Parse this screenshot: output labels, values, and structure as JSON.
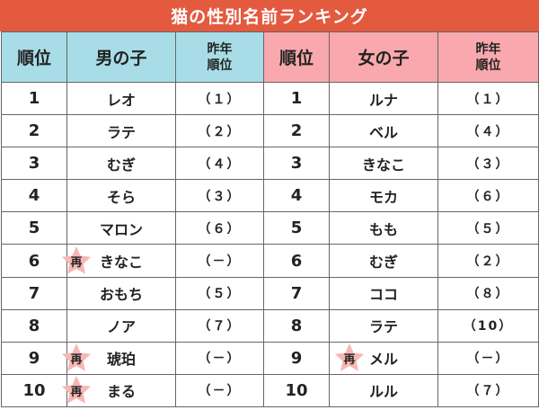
{
  "title": "猫の性別名前ランキング",
  "headers": {
    "rank": "順位",
    "male": "男の子",
    "female": "女の子",
    "prev_line1": "昨年",
    "prev_line2": "順位"
  },
  "badge_text": "再",
  "colors": {
    "title_bg": "#e35a3f",
    "male_header_bg": "#a8dde7",
    "female_header_bg": "#f9a8ad",
    "star": "#f7b7b3"
  },
  "rows": [
    {
      "rank": "1",
      "male": "レオ",
      "male_prev": "（１）",
      "male_badge": false,
      "female_rank": "1",
      "female": "ルナ",
      "female_prev": "（１）",
      "female_badge": false
    },
    {
      "rank": "2",
      "male": "ラテ",
      "male_prev": "（２）",
      "male_badge": false,
      "female_rank": "2",
      "female": "ベル",
      "female_prev": "（４）",
      "female_badge": false
    },
    {
      "rank": "3",
      "male": "むぎ",
      "male_prev": "（４）",
      "male_badge": false,
      "female_rank": "3",
      "female": "きなこ",
      "female_prev": "（３）",
      "female_badge": false
    },
    {
      "rank": "4",
      "male": "そら",
      "male_prev": "（３）",
      "male_badge": false,
      "female_rank": "4",
      "female": "モカ",
      "female_prev": "（６）",
      "female_badge": false
    },
    {
      "rank": "5",
      "male": "マロン",
      "male_prev": "（６）",
      "male_badge": false,
      "female_rank": "5",
      "female": "もも",
      "female_prev": "（５）",
      "female_badge": false
    },
    {
      "rank": "6",
      "male": "きなこ",
      "male_prev": "（－）",
      "male_badge": true,
      "female_rank": "6",
      "female": "むぎ",
      "female_prev": "（２）",
      "female_badge": false
    },
    {
      "rank": "7",
      "male": "おもち",
      "male_prev": "（５）",
      "male_badge": false,
      "female_rank": "7",
      "female": "ココ",
      "female_prev": "（８）",
      "female_badge": false
    },
    {
      "rank": "8",
      "male": "ノア",
      "male_prev": "（７）",
      "male_badge": false,
      "female_rank": "8",
      "female": "ラテ",
      "female_prev": "（10）",
      "female_badge": false
    },
    {
      "rank": "9",
      "male": "琥珀",
      "male_prev": "（－）",
      "male_badge": true,
      "female_rank": "9",
      "female": "メル",
      "female_prev": "（－）",
      "female_badge": true
    },
    {
      "rank": "10",
      "male": "まる",
      "male_prev": "（－）",
      "male_badge": true,
      "female_rank": "10",
      "female": "ルル",
      "female_prev": "（７）",
      "female_badge": false
    }
  ]
}
